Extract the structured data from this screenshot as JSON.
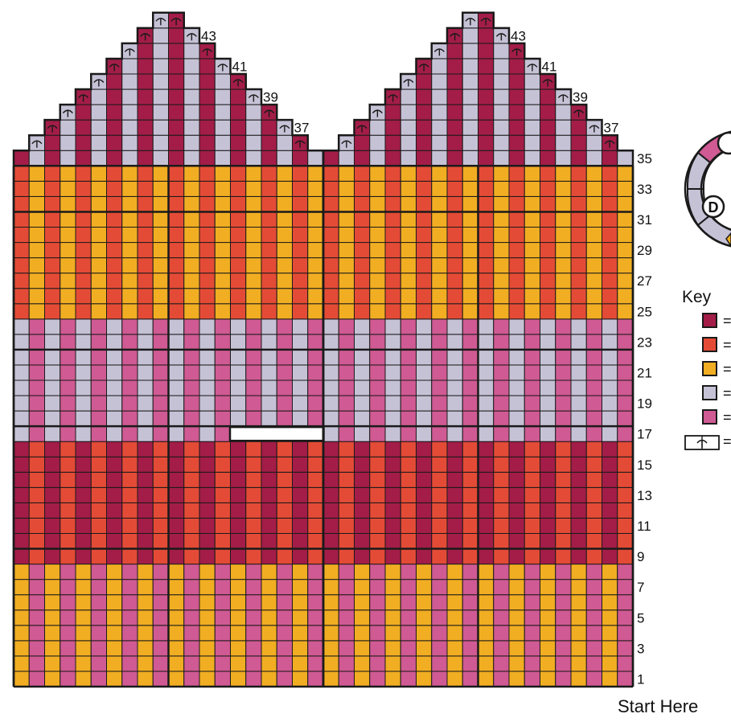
{
  "colors": {
    "A": "#a31d48",
    "B": "#e44b36",
    "C": "#f1ae22",
    "D": "#c6c2d6",
    "E": "#d05a93",
    "grid": "#1a1a1a",
    "background": "#ffffff"
  },
  "chart": {
    "stitch_count": 40,
    "row_count": 44,
    "half_width": 20,
    "color_rows": [
      {
        "from": 1,
        "to": 8,
        "pattern": "CE"
      },
      {
        "from": 9,
        "to": 16,
        "pattern": "AB"
      },
      {
        "from": 17,
        "to": 24,
        "pattern": "DE"
      },
      {
        "from": 25,
        "to": 34,
        "pattern": "BC"
      },
      {
        "from": 35,
        "to": 44,
        "pattern": "AD"
      }
    ],
    "white_bar": {
      "row": 17,
      "start": 14,
      "end": 20
    },
    "decrease_rows": [
      36,
      37,
      38,
      39,
      40,
      41,
      42,
      43,
      44
    ]
  },
  "row_labels": [
    "1",
    "3",
    "5",
    "7",
    "9",
    "11",
    "13",
    "15",
    "17",
    "19",
    "21",
    "23",
    "25",
    "27",
    "29",
    "31",
    "33",
    "35"
  ],
  "peak_labels": [
    "37",
    "39",
    "41",
    "43"
  ],
  "wheel": {
    "letters": [
      "D"
    ],
    "visible_top_letter_fragment": ""
  },
  "key": {
    "title": "Key",
    "items": [
      {
        "swatch": "A",
        "text": "="
      },
      {
        "swatch": "B",
        "text": "="
      },
      {
        "swatch": "C",
        "text": "="
      },
      {
        "swatch": "D",
        "text": "="
      },
      {
        "swatch": "E",
        "text": "="
      },
      {
        "swatch": "decrease-symbol",
        "text": "="
      }
    ]
  },
  "footer": {
    "start_label": "Start Here"
  }
}
